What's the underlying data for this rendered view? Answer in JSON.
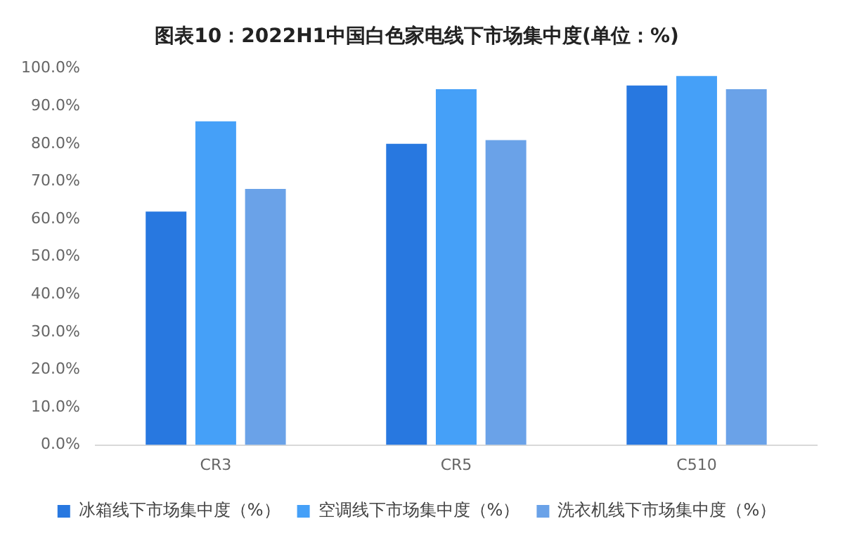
{
  "chart_data": {
    "type": "bar",
    "title": "图表10：2022H1中国白色家电线下市场集中度(单位：%)",
    "categories": [
      "CR3",
      "CR5",
      "C510"
    ],
    "series": [
      {
        "name": "冰箱线下市场集中度（%）",
        "color": "#2878e0",
        "values": [
          62,
          80,
          95.5
        ]
      },
      {
        "name": "空调线下市场集中度（%）",
        "color": "#45a0f8",
        "values": [
          86,
          94.5,
          98
        ]
      },
      {
        "name": "洗衣机线下市场集中度（%）",
        "color": "#6aa2e8",
        "values": [
          68,
          81,
          94.5
        ]
      }
    ],
    "ylim": [
      0,
      100
    ],
    "yticks": [
      {
        "value": 0,
        "label": "0.0%"
      },
      {
        "value": 10,
        "label": "10.0%"
      },
      {
        "value": 20,
        "label": "20.0%"
      },
      {
        "value": 30,
        "label": "30.0%"
      },
      {
        "value": 40,
        "label": "40.0%"
      },
      {
        "value": 50,
        "label": "50.0%"
      },
      {
        "value": 60,
        "label": "60.0%"
      },
      {
        "value": 70,
        "label": "70.0%"
      },
      {
        "value": 80,
        "label": "80.0%"
      },
      {
        "value": 90,
        "label": "90.0%"
      },
      {
        "value": 100,
        "label": "100.0%"
      }
    ],
    "grid": false,
    "legend": "bottom"
  }
}
